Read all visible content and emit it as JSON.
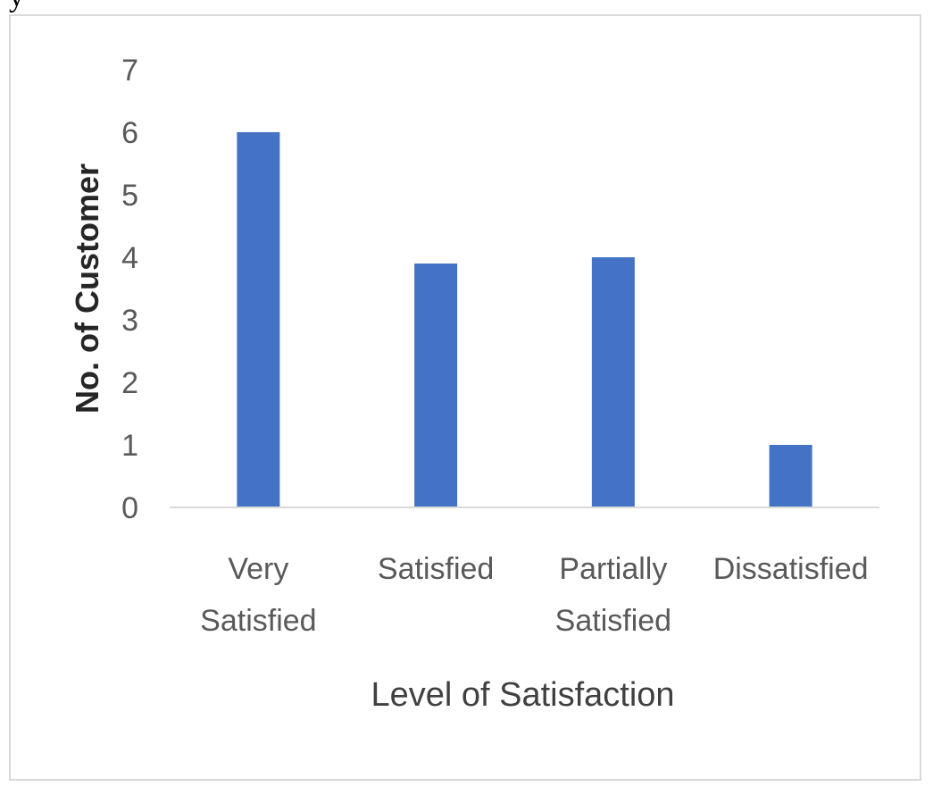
{
  "caption_fragment": "y",
  "chart_data": {
    "type": "bar",
    "categories": [
      [
        "Very",
        "Satisfied"
      ],
      [
        "Satisfied"
      ],
      [
        "Partially",
        "Satisfied"
      ],
      [
        "Dissatisfied"
      ]
    ],
    "values": [
      6,
      3.9,
      4,
      1
    ],
    "xlabel": "Level of Satisfaction",
    "ylabel": "No. of Customer",
    "ylim": [
      0,
      7
    ],
    "yticks": [
      "0",
      "1",
      "2",
      "3",
      "4",
      "5",
      "6",
      "7"
    ],
    "grid": false,
    "legend": "none",
    "colors": {
      "bar": "#4472c4",
      "axis_line": "#d9d9d9"
    }
  }
}
